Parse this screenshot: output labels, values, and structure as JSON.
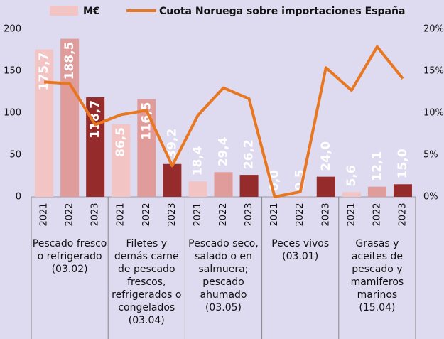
{
  "chart_data": {
    "type": "bar_line",
    "categories": [
      "2021",
      "2022",
      "2023",
      "2021",
      "2022",
      "2023",
      "2021",
      "2022",
      "2023",
      "2021",
      "2022",
      "2023",
      "2021",
      "2022",
      "2023"
    ],
    "groups": [
      "Pescado fresco o refrigerado (03.02)",
      "Filetes y demás carne de pescado frescos, refrigerados o congelados (03.04)",
      "Pescado seco, salado o en salmuera; pescado ahumado (03.05)",
      "Peces vivos (03.01)",
      "Grasas y aceites de pescado y mamiferos marinos (15.04)"
    ],
    "series": [
      {
        "name": "M€",
        "type": "bar",
        "color": "#f2c4c4",
        "colors": [
          "#f2c4c4",
          "#e09b9b",
          "#952b2b",
          "#f2c4c4",
          "#e09b9b",
          "#952b2b",
          "#f2c4c4",
          "#e09b9b",
          "#952b2b",
          "#f2c4c4",
          "#e09b9b",
          "#952b2b",
          "#f2c4c4",
          "#e09b9b",
          "#952b2b"
        ],
        "values": [
          175.7,
          188.5,
          118.7,
          86.5,
          116.5,
          39.2,
          18.4,
          29.4,
          26.2,
          0.0,
          0.5,
          24.0,
          5.6,
          12.1,
          15.0
        ],
        "value_labels": [
          "175,7",
          "188,5",
          "118,7",
          "86,5",
          "116,5",
          "39,2",
          "18,4",
          "29,4",
          "26,2",
          "0,0",
          "0,5",
          "24,0",
          "5,6",
          "12,1",
          "15,0"
        ]
      },
      {
        "name": "Cuota Noruega sobre importaciones España",
        "type": "line",
        "axis": "y2",
        "color": "#e87722",
        "values": [
          13.7,
          13.5,
          8.6,
          9.8,
          10.3,
          3.7,
          9.7,
          13.0,
          11.7,
          0,
          0.6,
          15.4,
          12.7,
          17.9,
          14.1
        ]
      }
    ],
    "ylim": [
      0,
      200
    ],
    "yticks": [
      0,
      50,
      100,
      150,
      200
    ],
    "y2lim": [
      0,
      20
    ],
    "y2ticks": [
      {
        "value": 0,
        "label": "0%"
      },
      {
        "value": 5,
        "label": "5%"
      },
      {
        "value": 10,
        "label": "10%"
      },
      {
        "value": 15,
        "label": "15%"
      },
      {
        "value": 20,
        "label": "20%"
      }
    ],
    "legend": "top"
  }
}
